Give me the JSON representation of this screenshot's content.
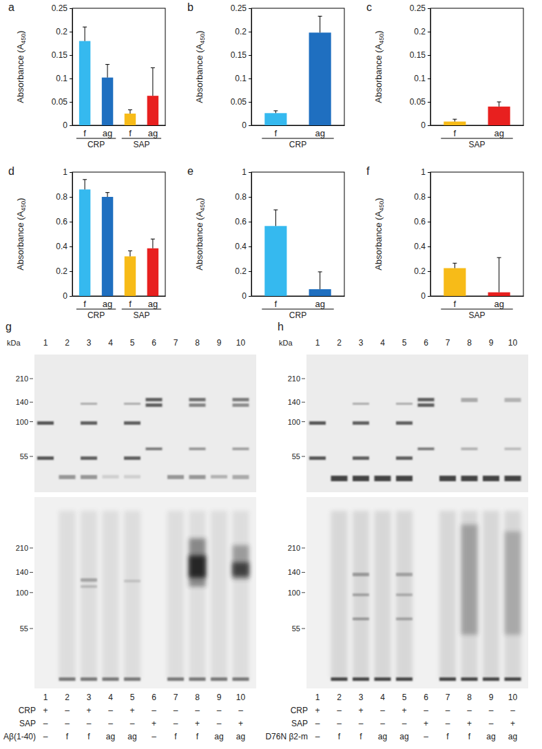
{
  "chart_data": [
    {
      "type": "bar",
      "title": "a",
      "y_label": "Absorbance (A450)",
      "categories": [
        "f",
        "ag",
        "f",
        "ag"
      ],
      "groups": [
        "CRP",
        "CRP",
        "SAP",
        "SAP"
      ],
      "values": [
        0.18,
        0.102,
        0.025,
        0.063
      ],
      "errors": [
        0.03,
        0.028,
        0.008,
        0.06
      ],
      "colors": [
        "#35b9ef",
        "#1f6fc0",
        "#f7bb18",
        "#e8201f"
      ],
      "ylim": [
        0,
        0.25
      ],
      "yticks": [
        0,
        0.05,
        0.1,
        0.15,
        0.2,
        0.25
      ]
    },
    {
      "type": "bar",
      "title": "b",
      "y_label": "Absorbance (A450)",
      "categories": [
        "f",
        "ag"
      ],
      "groups": [
        "CRP",
        "CRP"
      ],
      "values": [
        0.026,
        0.198
      ],
      "errors": [
        0.005,
        0.035
      ],
      "colors": [
        "#35b9ef",
        "#1f6fc0"
      ],
      "ylim": [
        0,
        0.25
      ],
      "yticks": [
        0,
        0.05,
        0.1,
        0.15,
        0.2,
        0.25
      ]
    },
    {
      "type": "bar",
      "title": "c",
      "y_label": "Absorbance (A450)",
      "categories": [
        "f",
        "ag"
      ],
      "groups": [
        "SAP",
        "SAP"
      ],
      "values": [
        0.008,
        0.04
      ],
      "errors": [
        0.005,
        0.01
      ],
      "colors": [
        "#f7bb18",
        "#e8201f"
      ],
      "ylim": [
        0,
        0.25
      ],
      "yticks": [
        0,
        0.05,
        0.1,
        0.15,
        0.2,
        0.25
      ]
    },
    {
      "type": "bar",
      "title": "d",
      "y_label": "Absorbance (A450)",
      "categories": [
        "f",
        "ag",
        "f",
        "ag"
      ],
      "groups": [
        "CRP",
        "CRP",
        "SAP",
        "SAP"
      ],
      "values": [
        0.86,
        0.8,
        0.32,
        0.385
      ],
      "errors": [
        0.08,
        0.035,
        0.045,
        0.075
      ],
      "colors": [
        "#35b9ef",
        "#1f6fc0",
        "#f7bb18",
        "#e8201f"
      ],
      "ylim": [
        0,
        1
      ],
      "yticks": [
        0,
        0.2,
        0.4,
        0.6,
        0.8,
        1
      ]
    },
    {
      "type": "bar",
      "title": "e",
      "y_label": "Absorbance (A450)",
      "categories": [
        "f",
        "ag"
      ],
      "groups": [
        "CRP",
        "CRP"
      ],
      "values": [
        0.565,
        0.055
      ],
      "errors": [
        0.13,
        0.14
      ],
      "colors": [
        "#35b9ef",
        "#1f6fc0"
      ],
      "ylim": [
        0,
        1
      ],
      "yticks": [
        0,
        0.2,
        0.4,
        0.6,
        0.8,
        1
      ]
    },
    {
      "type": "bar",
      "title": "f",
      "y_label": "Absorbance (A450)",
      "categories": [
        "f",
        "ag"
      ],
      "groups": [
        "SAP",
        "SAP"
      ],
      "values": [
        0.225,
        0.03
      ],
      "errors": [
        0.04,
        0.28
      ],
      "colors": [
        "#f7bb18",
        "#e8201f"
      ],
      "ylim": [
        0,
        1
      ],
      "yticks": [
        0,
        0.2,
        0.4,
        0.6,
        0.8,
        1
      ]
    }
  ],
  "gels": [
    {
      "panel": "g",
      "unit": "kDa",
      "lanes": [
        1,
        2,
        3,
        4,
        5,
        6,
        7,
        8,
        9,
        10
      ],
      "upper_markers": [
        210,
        140,
        100,
        55
      ],
      "lower_markers": [
        210,
        140,
        100,
        55
      ],
      "rows": [
        {
          "label": "CRP",
          "values": [
            "+",
            "–",
            "+",
            "–",
            "+",
            "–",
            "–",
            "–",
            "–",
            "–"
          ]
        },
        {
          "label": "SAP",
          "values": [
            "–",
            "–",
            "–",
            "–",
            "–",
            "+",
            "–",
            "+",
            "–",
            "+"
          ]
        },
        {
          "label": "Aβ(1-40)",
          "values": [
            "–",
            "f",
            "f",
            "ag",
            "ag",
            "–",
            "f",
            "f",
            "ag",
            "ag"
          ]
        }
      ]
    },
    {
      "panel": "h",
      "unit": "kDa",
      "lanes": [
        1,
        2,
        3,
        4,
        5,
        6,
        7,
        8,
        9,
        10
      ],
      "upper_markers": [
        210,
        140,
        100,
        55
      ],
      "lower_markers": [
        210,
        140,
        100,
        55
      ],
      "rows": [
        {
          "label": "CRP",
          "values": [
            "+",
            "–",
            "+",
            "–",
            "+",
            "–",
            "–",
            "–",
            "–",
            "–"
          ]
        },
        {
          "label": "SAP",
          "values": [
            "–",
            "–",
            "–",
            "–",
            "–",
            "+",
            "–",
            "+",
            "–",
            "+"
          ]
        },
        {
          "label": "D76N β2-m",
          "values": [
            "–",
            "f",
            "f",
            "ag",
            "ag",
            "–",
            "f",
            "f",
            "ag",
            "ag"
          ]
        }
      ]
    }
  ]
}
